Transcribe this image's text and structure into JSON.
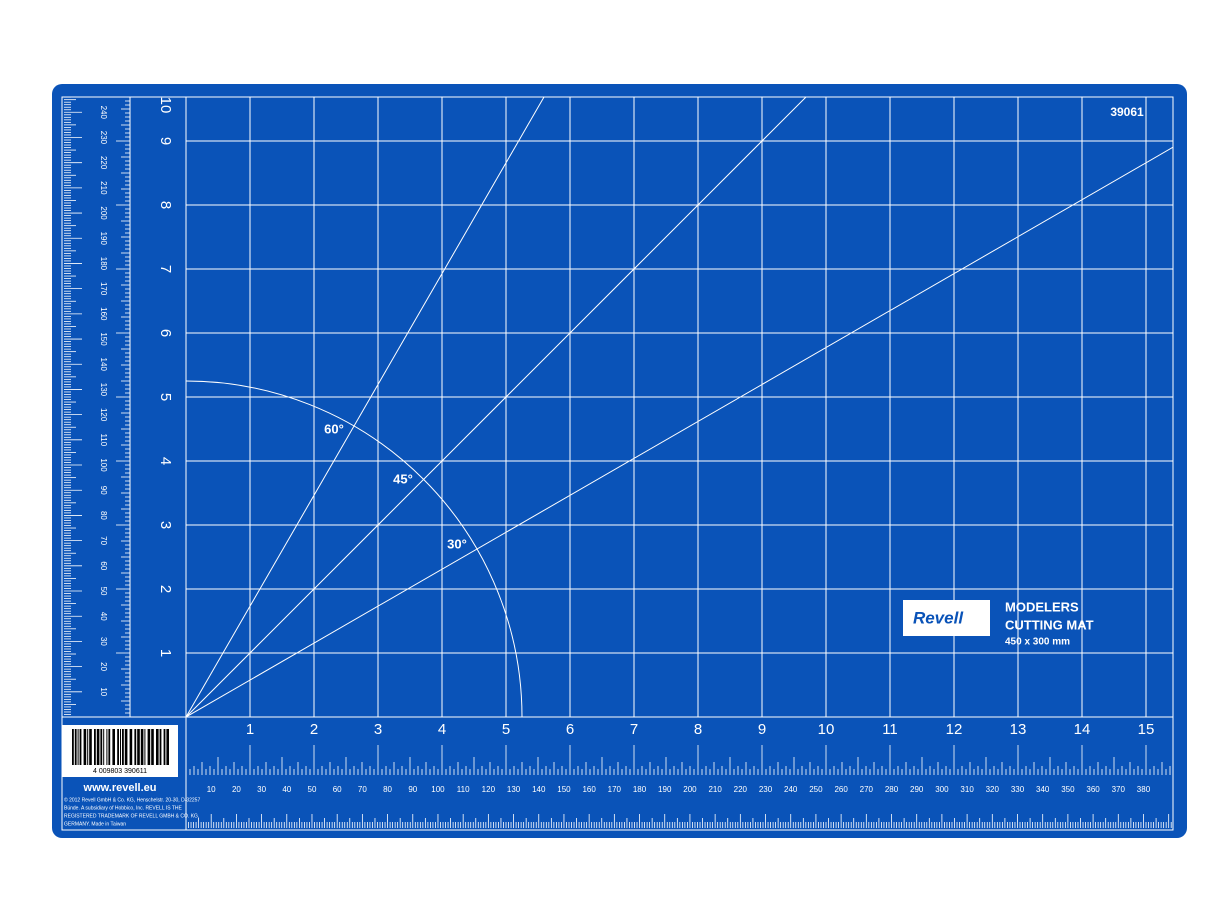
{
  "brand": "Revell",
  "product_code": "39061",
  "product": {
    "line1": "MODELERS",
    "line2": "CUTTING MAT",
    "size": "450 x 300 mm"
  },
  "angles": [
    "60°",
    "45°",
    "30°"
  ],
  "website": "www.revell.eu",
  "barcode": "4 009803 390611",
  "legal": [
    "© 2012 Revell GmbH & Co. KG, Henschelstr. 20-30, D-32257",
    "Bünde. A subsidiary of Hobbico, Inc. REVELL IS THE",
    "REGISTERED TRADEMARK OF REVELL GMBH & CO. KG,",
    "GERMANY. Made in Taiwan"
  ],
  "inch_x": [
    1,
    2,
    3,
    4,
    5,
    6,
    7,
    8,
    9,
    10,
    11,
    12,
    13,
    14,
    15
  ],
  "inch_y": [
    1,
    2,
    3,
    4,
    5,
    6,
    7,
    8,
    9,
    10
  ],
  "mm_x": [
    10,
    20,
    30,
    40,
    50,
    60,
    70,
    80,
    90,
    100,
    110,
    120,
    130,
    140,
    150,
    160,
    170,
    180,
    190,
    200,
    210,
    220,
    230,
    240,
    250,
    260,
    270,
    280,
    290,
    300,
    310,
    320,
    330,
    340,
    350,
    360,
    370,
    380
  ],
  "mm_y": [
    10,
    20,
    30,
    40,
    50,
    60,
    70,
    80,
    90,
    100,
    110,
    120,
    130,
    140,
    150,
    160,
    170,
    180,
    190,
    200,
    210,
    220,
    230,
    240
  ]
}
